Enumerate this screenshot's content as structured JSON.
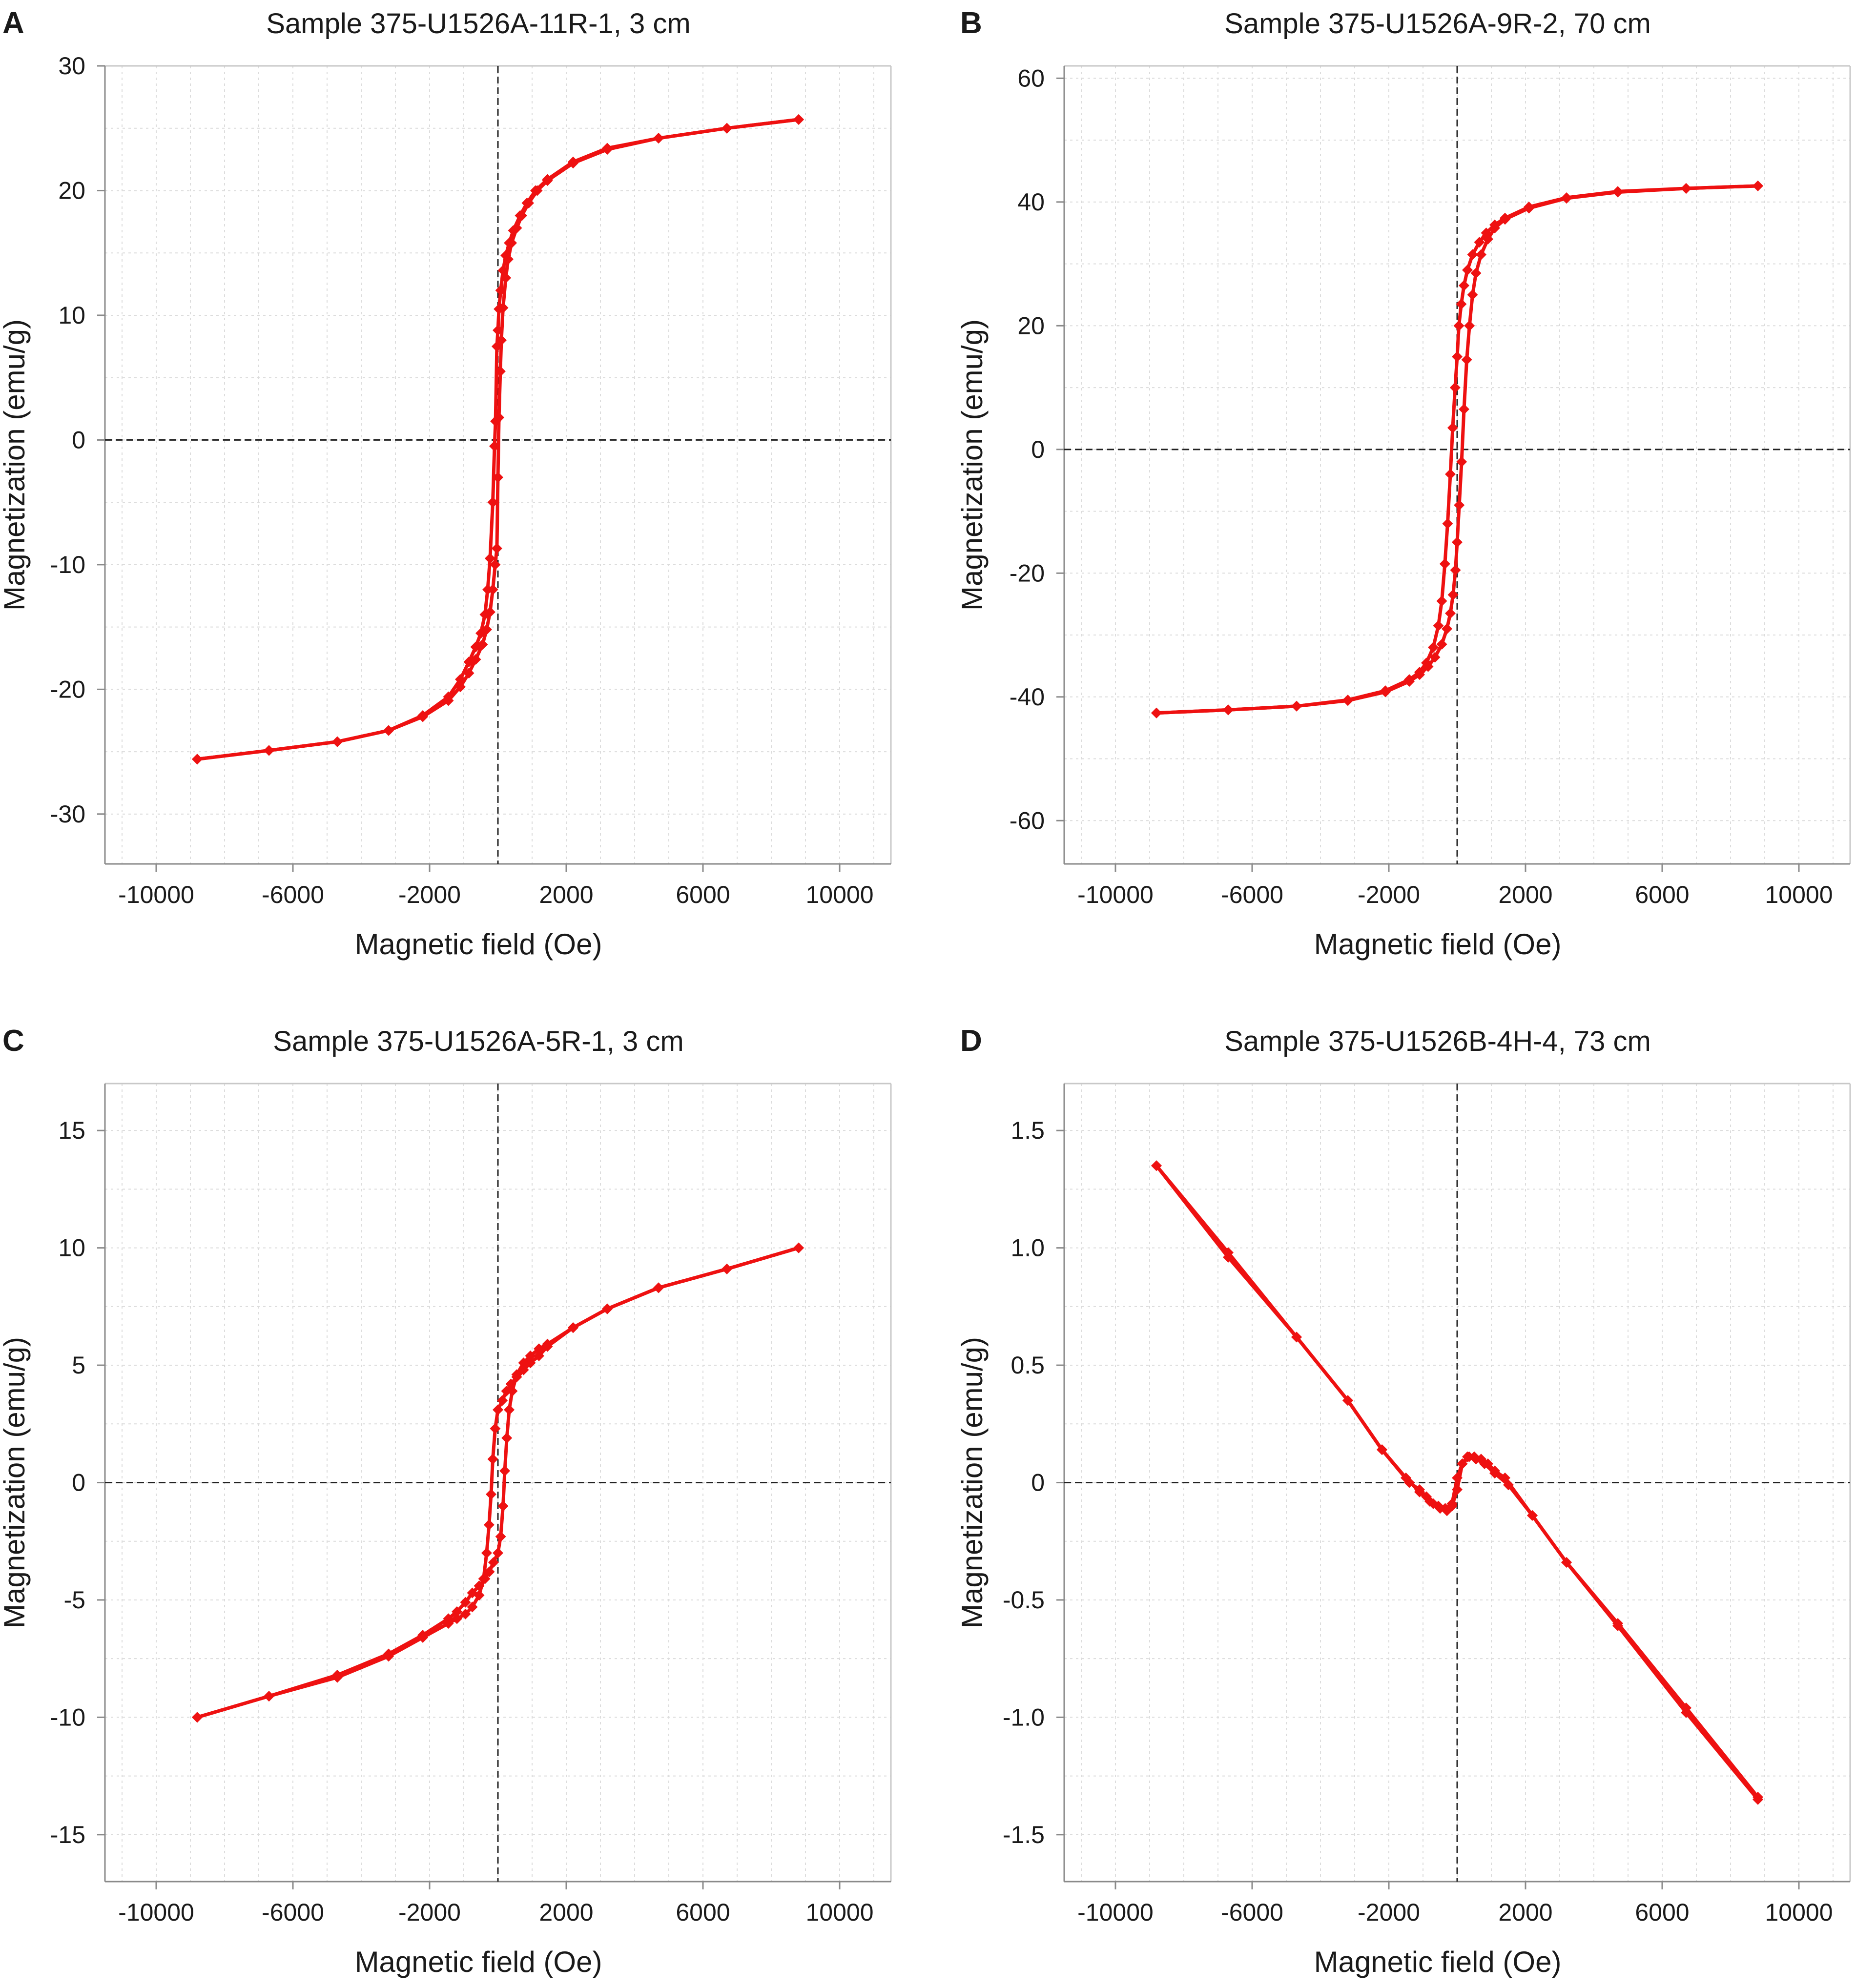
{
  "chart_data": [
    {
      "panel": "A",
      "type": "line",
      "title": "Sample 375-U1526A-11R-1, 3 cm",
      "xlabel": "Magnetic field (Oe)",
      "ylabel": "Magnetization (emu/g)",
      "xlim": [
        -11500,
        11500
      ],
      "ylim": [
        -34,
        30
      ],
      "xticks": [
        -10000,
        -6000,
        -2000,
        2000,
        6000,
        10000
      ],
      "xtick_labels": [
        "-10000",
        "-6000",
        "-2000",
        "2000",
        "6000",
        "10000"
      ],
      "yticks": [
        30,
        20,
        10,
        0,
        -10,
        -20,
        -30
      ],
      "ytick_labels": [
        "30",
        "20",
        "10",
        "0",
        "-10",
        "-20",
        "-30"
      ],
      "grid": true,
      "series": [
        {
          "values": [
            [
              8800,
              25.7
            ],
            [
              6700,
              25.0
            ],
            [
              4700,
              24.2
            ],
            [
              3200,
              23.4
            ],
            [
              2200,
              22.3
            ],
            [
              1450,
              20.9
            ],
            [
              1100,
              20.0
            ],
            [
              850,
              19.0
            ],
            [
              650,
              18.0
            ],
            [
              450,
              16.8
            ],
            [
              330,
              15.8
            ],
            [
              230,
              14.8
            ],
            [
              150,
              13.6
            ],
            [
              80,
              12.0
            ],
            [
              30,
              10.5
            ],
            [
              0,
              8.8
            ],
            [
              -30,
              7.5
            ],
            [
              -70,
              1.5
            ],
            [
              -100,
              -0.5
            ],
            [
              -150,
              -5.0
            ],
            [
              -230,
              -9.5
            ],
            [
              -300,
              -12.0
            ],
            [
              -380,
              -14.0
            ],
            [
              -500,
              -15.5
            ],
            [
              -650,
              -16.6
            ],
            [
              -850,
              -17.8
            ],
            [
              -1100,
              -19.2
            ],
            [
              -1450,
              -20.6
            ],
            [
              -2200,
              -22.1
            ],
            [
              -3200,
              -23.3
            ],
            [
              -4700,
              -24.2
            ],
            [
              -6700,
              -24.9
            ],
            [
              -8800,
              -25.6
            ]
          ]
        },
        {
          "values": [
            [
              -8800,
              -25.6
            ],
            [
              -6700,
              -24.9
            ],
            [
              -4700,
              -24.2
            ],
            [
              -3200,
              -23.3
            ],
            [
              -2200,
              -22.2
            ],
            [
              -1450,
              -20.9
            ],
            [
              -1100,
              -19.8
            ],
            [
              -850,
              -18.7
            ],
            [
              -650,
              -17.6
            ],
            [
              -450,
              -16.4
            ],
            [
              -330,
              -15.2
            ],
            [
              -230,
              -13.8
            ],
            [
              -150,
              -12.0
            ],
            [
              -80,
              -10.0
            ],
            [
              -30,
              -8.7
            ],
            [
              0,
              -3.0
            ],
            [
              30,
              1.8
            ],
            [
              70,
              5.5
            ],
            [
              100,
              8.0
            ],
            [
              150,
              10.6
            ],
            [
              230,
              13.0
            ],
            [
              300,
              14.5
            ],
            [
              400,
              15.8
            ],
            [
              550,
              17.0
            ],
            [
              700,
              18.0
            ],
            [
              900,
              19.0
            ],
            [
              1150,
              20.0
            ],
            [
              1450,
              20.8
            ],
            [
              2200,
              22.2
            ],
            [
              3200,
              23.3
            ],
            [
              4700,
              24.2
            ],
            [
              6700,
              25.0
            ],
            [
              8800,
              25.7
            ]
          ]
        }
      ]
    },
    {
      "panel": "B",
      "type": "line",
      "title": "Sample 375-U1526A-9R-2, 70 cm",
      "xlabel": "Magnetic field (Oe)",
      "ylabel": "Magnetization (emu/g)",
      "xlim": [
        -11500,
        11500
      ],
      "ylim": [
        -67,
        62
      ],
      "xticks": [
        -10000,
        -6000,
        -2000,
        2000,
        6000,
        10000
      ],
      "xtick_labels": [
        "-10000",
        "-6000",
        "-2000",
        "2000",
        "6000",
        "10000"
      ],
      "yticks": [
        60,
        40,
        20,
        0,
        -20,
        -40,
        -60
      ],
      "ytick_labels": [
        "60",
        "40",
        "20",
        "0",
        "-20",
        "-40",
        "-60"
      ],
      "grid": true,
      "series": [
        {
          "values": [
            [
              8800,
              42.6
            ],
            [
              6700,
              42.2
            ],
            [
              4700,
              41.7
            ],
            [
              3200,
              40.7
            ],
            [
              2100,
              39.2
            ],
            [
              1400,
              37.4
            ],
            [
              1100,
              36.3
            ],
            [
              850,
              35.0
            ],
            [
              650,
              33.5
            ],
            [
              450,
              31.5
            ],
            [
              300,
              29.0
            ],
            [
              200,
              26.5
            ],
            [
              120,
              23.5
            ],
            [
              50,
              20.0
            ],
            [
              0,
              15.0
            ],
            [
              -60,
              10.0
            ],
            [
              -130,
              3.5
            ],
            [
              -200,
              -4.0
            ],
            [
              -280,
              -12.0
            ],
            [
              -360,
              -18.5
            ],
            [
              -450,
              -24.5
            ],
            [
              -550,
              -28.5
            ],
            [
              -700,
              -32.0
            ],
            [
              -900,
              -34.5
            ],
            [
              -1100,
              -36.0
            ],
            [
              -1400,
              -37.2
            ],
            [
              -2100,
              -39.0
            ],
            [
              -3200,
              -40.5
            ],
            [
              -4700,
              -41.5
            ],
            [
              -6700,
              -42.1
            ],
            [
              -8800,
              -42.6
            ]
          ]
        },
        {
          "values": [
            [
              -8800,
              -42.6
            ],
            [
              -6700,
              -42.1
            ],
            [
              -4700,
              -41.5
            ],
            [
              -3200,
              -40.6
            ],
            [
              -2100,
              -39.2
            ],
            [
              -1400,
              -37.5
            ],
            [
              -1100,
              -36.4
            ],
            [
              -850,
              -35.1
            ],
            [
              -650,
              -33.6
            ],
            [
              -450,
              -31.5
            ],
            [
              -300,
              -29.0
            ],
            [
              -200,
              -26.5
            ],
            [
              -120,
              -23.5
            ],
            [
              -50,
              -19.5
            ],
            [
              0,
              -15.0
            ],
            [
              60,
              -9.0
            ],
            [
              130,
              -2.0
            ],
            [
              200,
              6.5
            ],
            [
              280,
              14.5
            ],
            [
              360,
              20.0
            ],
            [
              450,
              25.0
            ],
            [
              550,
              28.5
            ],
            [
              700,
              31.5
            ],
            [
              900,
              34.0
            ],
            [
              1100,
              35.8
            ],
            [
              1400,
              37.2
            ],
            [
              2100,
              39.0
            ],
            [
              3200,
              40.6
            ],
            [
              4700,
              41.6
            ],
            [
              6700,
              42.2
            ],
            [
              8800,
              42.6
            ]
          ]
        }
      ]
    },
    {
      "panel": "C",
      "type": "line",
      "title": "Sample 375-U1526A-5R-1, 3 cm",
      "xlabel": "Magnetic field (Oe)",
      "ylabel": "Magnetization (emu/g)",
      "xlim": [
        -11500,
        11500
      ],
      "ylim": [
        -17,
        17
      ],
      "xticks": [
        -10000,
        -6000,
        -2000,
        2000,
        6000,
        10000
      ],
      "xtick_labels": [
        "-10000",
        "-6000",
        "-2000",
        "2000",
        "6000",
        "10000"
      ],
      "yticks": [
        15,
        10,
        5,
        0,
        -5,
        -10,
        -15
      ],
      "ytick_labels": [
        "15",
        "10",
        "5",
        "0",
        "-5",
        "-10",
        "-15"
      ],
      "grid": true,
      "series": [
        {
          "values": [
            [
              8800,
              10.0
            ],
            [
              6700,
              9.1
            ],
            [
              4700,
              8.3
            ],
            [
              3200,
              7.4
            ],
            [
              2200,
              6.6
            ],
            [
              1450,
              5.8
            ],
            [
              1200,
              5.4
            ],
            [
              950,
              5.1
            ],
            [
              750,
              4.8
            ],
            [
              550,
              4.5
            ],
            [
              380,
              4.2
            ],
            [
              250,
              3.9
            ],
            [
              130,
              3.5
            ],
            [
              0,
              3.1
            ],
            [
              -80,
              2.3
            ],
            [
              -150,
              1.0
            ],
            [
              -200,
              -0.5
            ],
            [
              -260,
              -1.8
            ],
            [
              -330,
              -3.0
            ],
            [
              -420,
              -4.1
            ],
            [
              -550,
              -4.8
            ],
            [
              -750,
              -5.3
            ],
            [
              -950,
              -5.6
            ],
            [
              -1200,
              -5.8
            ],
            [
              -1450,
              -6.0
            ],
            [
              -2200,
              -6.6
            ],
            [
              -3200,
              -7.4
            ],
            [
              -4700,
              -8.3
            ],
            [
              -6700,
              -9.1
            ],
            [
              -8800,
              -10.0
            ]
          ]
        },
        {
          "values": [
            [
              -8800,
              -10.0
            ],
            [
              -6700,
              -9.1
            ],
            [
              -4700,
              -8.2
            ],
            [
              -3200,
              -7.3
            ],
            [
              -2200,
              -6.5
            ],
            [
              -1450,
              -5.8
            ],
            [
              -1200,
              -5.5
            ],
            [
              -950,
              -5.1
            ],
            [
              -750,
              -4.7
            ],
            [
              -550,
              -4.4
            ],
            [
              -380,
              -4.1
            ],
            [
              -250,
              -3.8
            ],
            [
              -130,
              -3.4
            ],
            [
              0,
              -3.0
            ],
            [
              80,
              -2.3
            ],
            [
              150,
              -1.0
            ],
            [
              200,
              0.5
            ],
            [
              260,
              1.9
            ],
            [
              330,
              3.1
            ],
            [
              420,
              3.9
            ],
            [
              550,
              4.6
            ],
            [
              750,
              5.1
            ],
            [
              950,
              5.4
            ],
            [
              1200,
              5.7
            ],
            [
              1450,
              5.9
            ],
            [
              2200,
              6.6
            ],
            [
              3200,
              7.4
            ],
            [
              4700,
              8.3
            ],
            [
              6700,
              9.1
            ],
            [
              8800,
              10.0
            ]
          ]
        }
      ]
    },
    {
      "panel": "D",
      "type": "line",
      "title": "Sample 375-U1526B-4H-4, 73 cm",
      "xlabel": "Magnetic field (Oe)",
      "ylabel": "Magnetization (emu/g)",
      "xlim": [
        -11500,
        11500
      ],
      "ylim": [
        -1.7,
        1.7
      ],
      "xticks": [
        -10000,
        -6000,
        -2000,
        2000,
        6000,
        10000
      ],
      "xtick_labels": [
        "-10000",
        "-6000",
        "-2000",
        "2000",
        "6000",
        "10000"
      ],
      "yticks": [
        1.5,
        1.0,
        0.5,
        0,
        -0.5,
        -1.0,
        -1.5
      ],
      "ytick_labels": [
        "1.5",
        "1.0",
        "0.5",
        "0",
        "-0.5",
        "-1.0",
        "-1.5"
      ],
      "grid": true,
      "series": [
        {
          "values": [
            [
              -8800,
              1.35
            ],
            [
              -6700,
              0.98
            ],
            [
              -4700,
              0.62
            ],
            [
              -3200,
              0.35
            ],
            [
              -2200,
              0.14
            ],
            [
              -1500,
              0.02
            ],
            [
              -1100,
              -0.04
            ],
            [
              -800,
              -0.08
            ],
            [
              -550,
              -0.1
            ],
            [
              -350,
              -0.11
            ],
            [
              -150,
              -0.09
            ],
            [
              0,
              0.02
            ],
            [
              150,
              0.08
            ],
            [
              300,
              0.11
            ],
            [
              500,
              0.11
            ],
            [
              700,
              0.1
            ],
            [
              900,
              0.08
            ],
            [
              1100,
              0.05
            ],
            [
              1400,
              0.02
            ],
            [
              2200,
              -0.14
            ],
            [
              3200,
              -0.34
            ],
            [
              4700,
              -0.61
            ],
            [
              6700,
              -0.98
            ],
            [
              8800,
              -1.35
            ]
          ]
        },
        {
          "values": [
            [
              8800,
              -1.34
            ],
            [
              6700,
              -0.96
            ],
            [
              4700,
              -0.6
            ],
            [
              3200,
              -0.34
            ],
            [
              2200,
              -0.14
            ],
            [
              1500,
              -0.01
            ],
            [
              1100,
              0.04
            ],
            [
              800,
              0.08
            ],
            [
              550,
              0.1
            ],
            [
              350,
              0.11
            ],
            [
              150,
              0.08
            ],
            [
              0,
              -0.03
            ],
            [
              -150,
              -0.1
            ],
            [
              -300,
              -0.12
            ],
            [
              -500,
              -0.11
            ],
            [
              -700,
              -0.09
            ],
            [
              -900,
              -0.06
            ],
            [
              -1100,
              -0.03
            ],
            [
              -1400,
              0.0
            ],
            [
              -2200,
              0.14
            ],
            [
              -3200,
              0.35
            ],
            [
              -4700,
              0.62
            ],
            [
              -6700,
              0.96
            ],
            [
              -8800,
              1.35
            ]
          ]
        }
      ]
    }
  ]
}
